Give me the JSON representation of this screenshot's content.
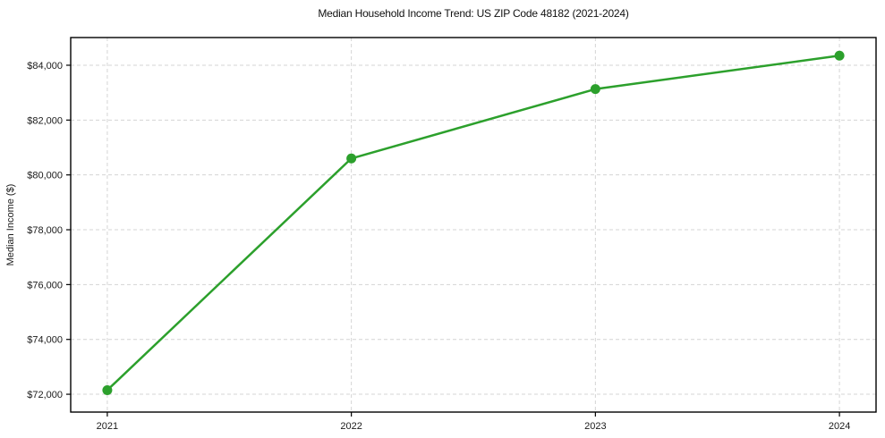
{
  "figure": {
    "background": "#ffffff",
    "frame_color": "#000000"
  },
  "chart_data": {
    "type": "line",
    "title": "Median Household Income Trend: US ZIP Code 48182 (2021-2024)",
    "xlabel": "",
    "ylabel": "Median Income ($)",
    "categories": [
      "2021",
      "2022",
      "2023",
      "2024"
    ],
    "x": [
      2021,
      2022,
      2023,
      2024
    ],
    "series": [
      {
        "name": "Median Household Income",
        "color": "#2ca02c",
        "marker": "circle",
        "values": [
          72150,
          80600,
          83130,
          84350
        ]
      }
    ],
    "yticks": [
      72000,
      74000,
      76000,
      78000,
      80000,
      82000,
      84000
    ],
    "ytick_labels": [
      "$72,000",
      "$74,000",
      "$76,000",
      "$78,000",
      "$80,000",
      "$82,000",
      "$84,000"
    ],
    "xlim": [
      2020.85,
      2024.15
    ],
    "ylim": [
      71350,
      85010
    ],
    "grid": "both",
    "grid_style": "dashed",
    "grid_color": "#d4d4d4",
    "tick_color": "#000000",
    "label_color": "#1a1a1a",
    "legend": "none"
  }
}
